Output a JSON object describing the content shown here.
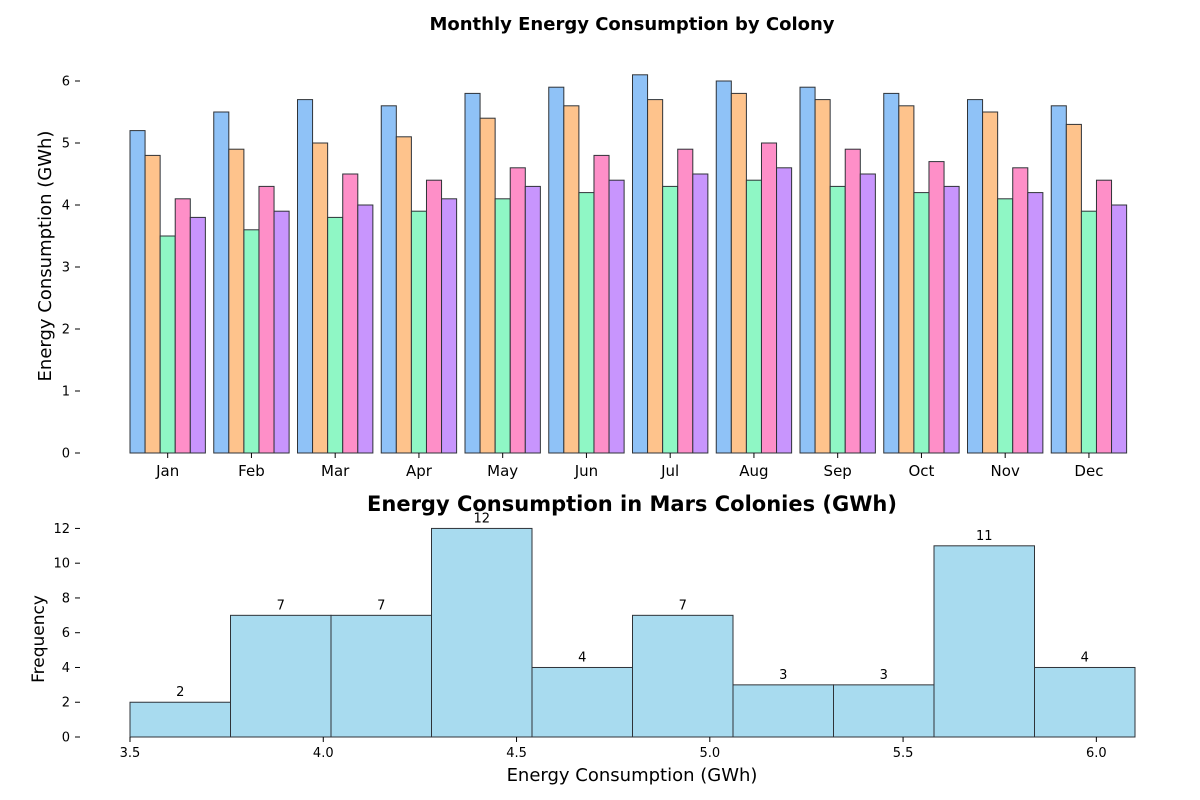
{
  "chart_data": [
    {
      "type": "bar",
      "title": "Monthly Energy Consumption by Colony",
      "xlabel": "",
      "ylabel": "Energy Consumption (GWh)",
      "ylim": [
        0,
        6.5
      ],
      "yticks": [
        0,
        1,
        2,
        3,
        4,
        5,
        6
      ],
      "grid": false,
      "categories": [
        "Jan",
        "Feb",
        "Mar",
        "Apr",
        "May",
        "Jun",
        "Jul",
        "Aug",
        "Sep",
        "Oct",
        "Nov",
        "Dec"
      ],
      "series": [
        {
          "color": "#8fc2f7",
          "values": [
            5.2,
            5.5,
            5.7,
            5.6,
            5.8,
            5.9,
            6.1,
            6.0,
            5.9,
            5.8,
            5.7,
            5.6
          ]
        },
        {
          "color": "#fec38c",
          "values": [
            4.8,
            4.9,
            5.0,
            5.1,
            5.4,
            5.6,
            5.7,
            5.8,
            5.7,
            5.6,
            5.5,
            5.3
          ]
        },
        {
          "color": "#8ff7c5",
          "values": [
            3.5,
            3.6,
            3.8,
            3.9,
            4.1,
            4.2,
            4.3,
            4.4,
            4.3,
            4.2,
            4.1,
            3.9
          ]
        },
        {
          "color": "#fe8fc8",
          "values": [
            4.1,
            4.3,
            4.5,
            4.4,
            4.6,
            4.8,
            4.9,
            5.0,
            4.9,
            4.7,
            4.6,
            4.4
          ]
        },
        {
          "color": "#c895fd",
          "values": [
            3.8,
            3.9,
            4.0,
            4.1,
            4.3,
            4.4,
            4.5,
            4.6,
            4.5,
            4.3,
            4.2,
            4.0
          ]
        }
      ]
    },
    {
      "type": "bar",
      "subtype": "histogram",
      "title": "Energy Consumption in Mars Colonies (GWh)",
      "xlabel": "Energy Consumption (GWh)",
      "ylabel": "Frequency",
      "xlim": [
        3.5,
        6.1
      ],
      "ylim": [
        0,
        12.6
      ],
      "xticks": [
        "3.5",
        "4.0",
        "4.5",
        "5.0",
        "5.5",
        "6.0"
      ],
      "yticks": [
        0,
        2,
        4,
        6,
        8,
        10,
        12
      ],
      "grid": false,
      "color": "#a8dbef",
      "bin_edges": [
        3.5,
        3.76,
        4.02,
        4.28,
        4.54,
        4.8,
        5.06,
        5.32,
        5.58,
        5.84,
        6.1
      ],
      "counts": [
        2,
        7,
        7,
        12,
        4,
        7,
        3,
        3,
        11,
        4
      ],
      "labels": [
        "2",
        "7",
        "7",
        "12",
        "4",
        "7",
        "3",
        "3",
        "11",
        "4"
      ]
    }
  ]
}
